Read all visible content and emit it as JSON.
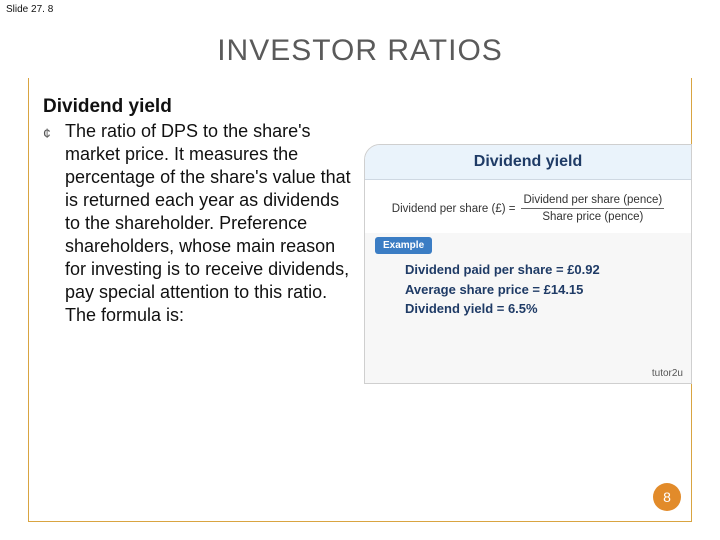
{
  "corner_label": "Slide 27. 8",
  "title": "INVESTOR RATIOS",
  "subheading": "Dividend yield",
  "bullet_marker": "¢",
  "bullet_text": "The ratio of DPS to the share's market price. It measures the percentage of the share's value that is returned each year as dividends to the shareholder. Preference shareholders, whose main reason for investing is to receive dividends, pay special attention to this ratio. The formula is:",
  "figure": {
    "header": "Dividend yield",
    "formula_lhs": "Dividend per share (£) =",
    "formula_num": "Dividend per share (pence)",
    "formula_den": "Share price (pence)",
    "example_badge": "Example",
    "line1": "Dividend paid per share = £0.92",
    "line2": "Average share price = £14.15",
    "line3": "Dividend yield = 6.5%",
    "attribution": "tutor2u"
  },
  "page_number": "8",
  "colors": {
    "slide_border": "#d9a441",
    "title_color": "#5a5a5a",
    "fig_header_bg": "#eaf3fb",
    "fig_text": "#1f3b66",
    "badge_bg": "#3b7dc4",
    "pagenum_bg": "#e28b2a"
  }
}
